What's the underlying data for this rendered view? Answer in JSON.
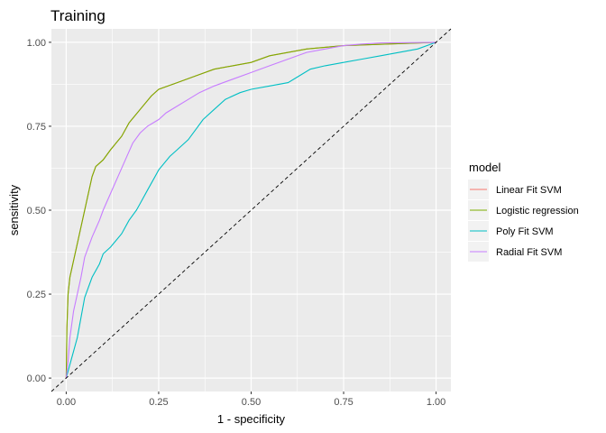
{
  "chart_data": {
    "type": "line",
    "title": "Training",
    "xlabel": "1 - specificity",
    "ylabel": "sensitivity",
    "xlim": [
      -0.04,
      1.04
    ],
    "ylim": [
      -0.04,
      1.04
    ],
    "x_ticks": [
      0,
      0.25,
      0.5,
      0.75,
      1
    ],
    "x_tick_labels": [
      "0.00",
      "0.25",
      "0.50",
      "0.75",
      "1.00"
    ],
    "y_ticks": [
      0,
      0.25,
      0.5,
      0.75,
      1
    ],
    "y_tick_labels": [
      "0.00",
      "0.25",
      "0.50",
      "0.75",
      "1.00"
    ],
    "grid": true,
    "background_color": "#EBEBEB",
    "legend": {
      "title": "model",
      "position": "right"
    },
    "reference_line": {
      "style": "dashed",
      "color": "#000000",
      "points": [
        [
          -0.04,
          -0.04
        ],
        [
          1.04,
          1.04
        ]
      ]
    },
    "series": [
      {
        "name": "Linear Fit SVM",
        "color": "#F8766D",
        "points": [
          [
            0,
            0
          ],
          [
            0.002,
            0.15
          ],
          [
            0.005,
            0.25
          ],
          [
            0.01,
            0.3
          ],
          [
            0.02,
            0.35
          ],
          [
            0.03,
            0.4
          ],
          [
            0.04,
            0.45
          ],
          [
            0.05,
            0.5
          ],
          [
            0.06,
            0.55
          ],
          [
            0.07,
            0.6
          ],
          [
            0.08,
            0.63
          ],
          [
            0.1,
            0.65
          ],
          [
            0.12,
            0.68
          ],
          [
            0.15,
            0.72
          ],
          [
            0.17,
            0.76
          ],
          [
            0.2,
            0.8
          ],
          [
            0.23,
            0.84
          ],
          [
            0.25,
            0.86
          ],
          [
            0.3,
            0.88
          ],
          [
            0.35,
            0.9
          ],
          [
            0.4,
            0.92
          ],
          [
            0.45,
            0.93
          ],
          [
            0.5,
            0.94
          ],
          [
            0.55,
            0.96
          ],
          [
            0.6,
            0.97
          ],
          [
            0.65,
            0.98
          ],
          [
            0.75,
            0.99
          ],
          [
            1,
            1
          ]
        ]
      },
      {
        "name": "Logistic regression",
        "color": "#7CAE00",
        "points": [
          [
            0,
            0
          ],
          [
            0.002,
            0.15
          ],
          [
            0.005,
            0.25
          ],
          [
            0.01,
            0.3
          ],
          [
            0.02,
            0.35
          ],
          [
            0.03,
            0.4
          ],
          [
            0.04,
            0.45
          ],
          [
            0.05,
            0.5
          ],
          [
            0.06,
            0.55
          ],
          [
            0.07,
            0.6
          ],
          [
            0.08,
            0.63
          ],
          [
            0.1,
            0.65
          ],
          [
            0.12,
            0.68
          ],
          [
            0.15,
            0.72
          ],
          [
            0.17,
            0.76
          ],
          [
            0.2,
            0.8
          ],
          [
            0.23,
            0.84
          ],
          [
            0.25,
            0.86
          ],
          [
            0.3,
            0.88
          ],
          [
            0.35,
            0.9
          ],
          [
            0.4,
            0.92
          ],
          [
            0.45,
            0.93
          ],
          [
            0.5,
            0.94
          ],
          [
            0.55,
            0.96
          ],
          [
            0.6,
            0.97
          ],
          [
            0.65,
            0.98
          ],
          [
            0.75,
            0.99
          ],
          [
            1,
            1
          ]
        ]
      },
      {
        "name": "Poly Fit SVM",
        "color": "#00BFC4",
        "points": [
          [
            0,
            0
          ],
          [
            0.01,
            0.04
          ],
          [
            0.02,
            0.08
          ],
          [
            0.03,
            0.12
          ],
          [
            0.04,
            0.18
          ],
          [
            0.05,
            0.24
          ],
          [
            0.07,
            0.3
          ],
          [
            0.09,
            0.34
          ],
          [
            0.1,
            0.37
          ],
          [
            0.12,
            0.39
          ],
          [
            0.15,
            0.43
          ],
          [
            0.17,
            0.47
          ],
          [
            0.19,
            0.5
          ],
          [
            0.2,
            0.52
          ],
          [
            0.22,
            0.56
          ],
          [
            0.24,
            0.6
          ],
          [
            0.25,
            0.62
          ],
          [
            0.28,
            0.66
          ],
          [
            0.3,
            0.68
          ],
          [
            0.33,
            0.71
          ],
          [
            0.35,
            0.74
          ],
          [
            0.37,
            0.77
          ],
          [
            0.4,
            0.8
          ],
          [
            0.43,
            0.83
          ],
          [
            0.47,
            0.85
          ],
          [
            0.5,
            0.86
          ],
          [
            0.55,
            0.87
          ],
          [
            0.6,
            0.88
          ],
          [
            0.63,
            0.9
          ],
          [
            0.66,
            0.92
          ],
          [
            0.7,
            0.93
          ],
          [
            0.75,
            0.94
          ],
          [
            0.8,
            0.95
          ],
          [
            0.85,
            0.96
          ],
          [
            0.9,
            0.97
          ],
          [
            0.95,
            0.98
          ],
          [
            1,
            1
          ]
        ]
      },
      {
        "name": "Radial Fit SVM",
        "color": "#C77CFF",
        "points": [
          [
            0,
            0
          ],
          [
            0.005,
            0.05
          ],
          [
            0.01,
            0.12
          ],
          [
            0.02,
            0.2
          ],
          [
            0.03,
            0.25
          ],
          [
            0.04,
            0.3
          ],
          [
            0.05,
            0.36
          ],
          [
            0.07,
            0.42
          ],
          [
            0.09,
            0.47
          ],
          [
            0.1,
            0.5
          ],
          [
            0.12,
            0.55
          ],
          [
            0.14,
            0.6
          ],
          [
            0.16,
            0.65
          ],
          [
            0.18,
            0.7
          ],
          [
            0.2,
            0.73
          ],
          [
            0.22,
            0.75
          ],
          [
            0.25,
            0.77
          ],
          [
            0.27,
            0.79
          ],
          [
            0.3,
            0.81
          ],
          [
            0.33,
            0.83
          ],
          [
            0.36,
            0.85
          ],
          [
            0.4,
            0.87
          ],
          [
            0.45,
            0.89
          ],
          [
            0.5,
            0.91
          ],
          [
            0.55,
            0.93
          ],
          [
            0.6,
            0.95
          ],
          [
            0.65,
            0.97
          ],
          [
            0.7,
            0.98
          ],
          [
            0.75,
            0.99
          ],
          [
            0.8,
            0.995
          ],
          [
            0.85,
            0.998
          ],
          [
            1,
            1
          ]
        ]
      }
    ]
  }
}
